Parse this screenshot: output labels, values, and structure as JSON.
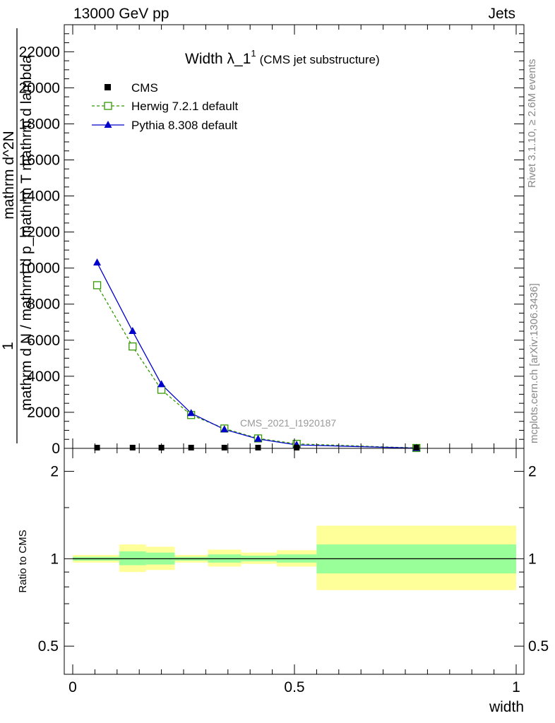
{
  "header": {
    "energy_label": "13000 GeV pp",
    "category_label": "Jets"
  },
  "side": {
    "rivet_label": "Rivet 3.1.10, ≥ 2.6M events",
    "mcplots_label": "mcplots.cern.ch [arXiv:1306.3436]"
  },
  "chart_data": [
    {
      "type": "line",
      "title": "Width λ_1",
      "title_superscript": "1",
      "subtitle": "(CMS jet substructure)",
      "analysis_label": "CMS_2021_I1920187",
      "ylabel_top": "1",
      "ylabel_bottom": "mathrm d N / mathrm d p_mathrm T mathrm d lambda",
      "ylabel_numerator": "mathrm d^2N",
      "ylim": [
        0,
        23500
      ],
      "xlim": [
        0,
        1
      ],
      "yticks": [
        0,
        2000,
        4000,
        6000,
        8000,
        10000,
        12000,
        14000,
        16000,
        18000,
        20000,
        22000
      ],
      "ytick_labels": [
        "0",
        "2000",
        "4000",
        "6000",
        "8000",
        "10000",
        "12000",
        "14000",
        "16000",
        "18000",
        "20000",
        "22000"
      ],
      "legend_position": "top-left",
      "series": [
        {
          "name": "CMS",
          "marker": "square",
          "color": "#000000",
          "x": [
            0.055,
            0.135,
            0.2,
            0.267,
            0.342,
            0.418,
            0.505,
            0.775
          ],
          "values": [
            40,
            40,
            40,
            40,
            40,
            40,
            40,
            40
          ]
        },
        {
          "name": "Herwig 7.2.1 default",
          "marker": "open-square",
          "line": "dashed",
          "color": "#339900",
          "x": [
            0.055,
            0.135,
            0.2,
            0.267,
            0.342,
            0.418,
            0.505,
            0.775
          ],
          "values": [
            9050,
            5650,
            3250,
            1850,
            1100,
            550,
            250,
            20
          ]
        },
        {
          "name": "Pythia 8.308 default",
          "marker": "triangle",
          "line": "solid",
          "color": "#0000cc",
          "x": [
            0.055,
            0.135,
            0.2,
            0.267,
            0.342,
            0.418,
            0.505,
            0.775
          ],
          "values": [
            10300,
            6500,
            3550,
            1950,
            1050,
            520,
            190,
            10
          ]
        }
      ]
    },
    {
      "type": "area",
      "ylabel": "Ratio to CMS",
      "xlabel": "width",
      "ylim": [
        0.4,
        2.4
      ],
      "xlim": [
        0,
        1
      ],
      "xticks": [
        0,
        0.5,
        1
      ],
      "xtick_labels": [
        "0",
        "0.5",
        "1"
      ],
      "yticks": [
        0.5,
        1,
        2
      ],
      "ytick_labels": [
        "0.5",
        "1",
        "2"
      ],
      "reference_line": 1,
      "bins": [
        {
          "x0": 0.0,
          "x1": 0.105,
          "stat_lo": 0.985,
          "stat_hi": 1.015,
          "tot_lo": 0.97,
          "tot_hi": 1.03
        },
        {
          "x0": 0.105,
          "x1": 0.165,
          "stat_lo": 0.95,
          "stat_hi": 1.06,
          "tot_lo": 0.9,
          "tot_hi": 1.12
        },
        {
          "x0": 0.165,
          "x1": 0.23,
          "stat_lo": 0.955,
          "stat_hi": 1.05,
          "tot_lo": 0.915,
          "tot_hi": 1.1
        },
        {
          "x0": 0.23,
          "x1": 0.305,
          "stat_lo": 0.985,
          "stat_hi": 1.015,
          "tot_lo": 0.97,
          "tot_hi": 1.03
        },
        {
          "x0": 0.305,
          "x1": 0.38,
          "stat_lo": 0.97,
          "stat_hi": 1.035,
          "tot_lo": 0.94,
          "tot_hi": 1.075
        },
        {
          "x0": 0.38,
          "x1": 0.46,
          "stat_lo": 0.98,
          "stat_hi": 1.025,
          "tot_lo": 0.96,
          "tot_hi": 1.05
        },
        {
          "x0": 0.46,
          "x1": 0.55,
          "stat_lo": 0.97,
          "stat_hi": 1.035,
          "tot_lo": 0.94,
          "tot_hi": 1.07
        },
        {
          "x0": 0.55,
          "x1": 1.0,
          "stat_lo": 0.89,
          "stat_hi": 1.12,
          "tot_lo": 0.78,
          "tot_hi": 1.3
        }
      ],
      "colors": {
        "stat": "#99ff99",
        "total": "#ffff99"
      }
    }
  ]
}
